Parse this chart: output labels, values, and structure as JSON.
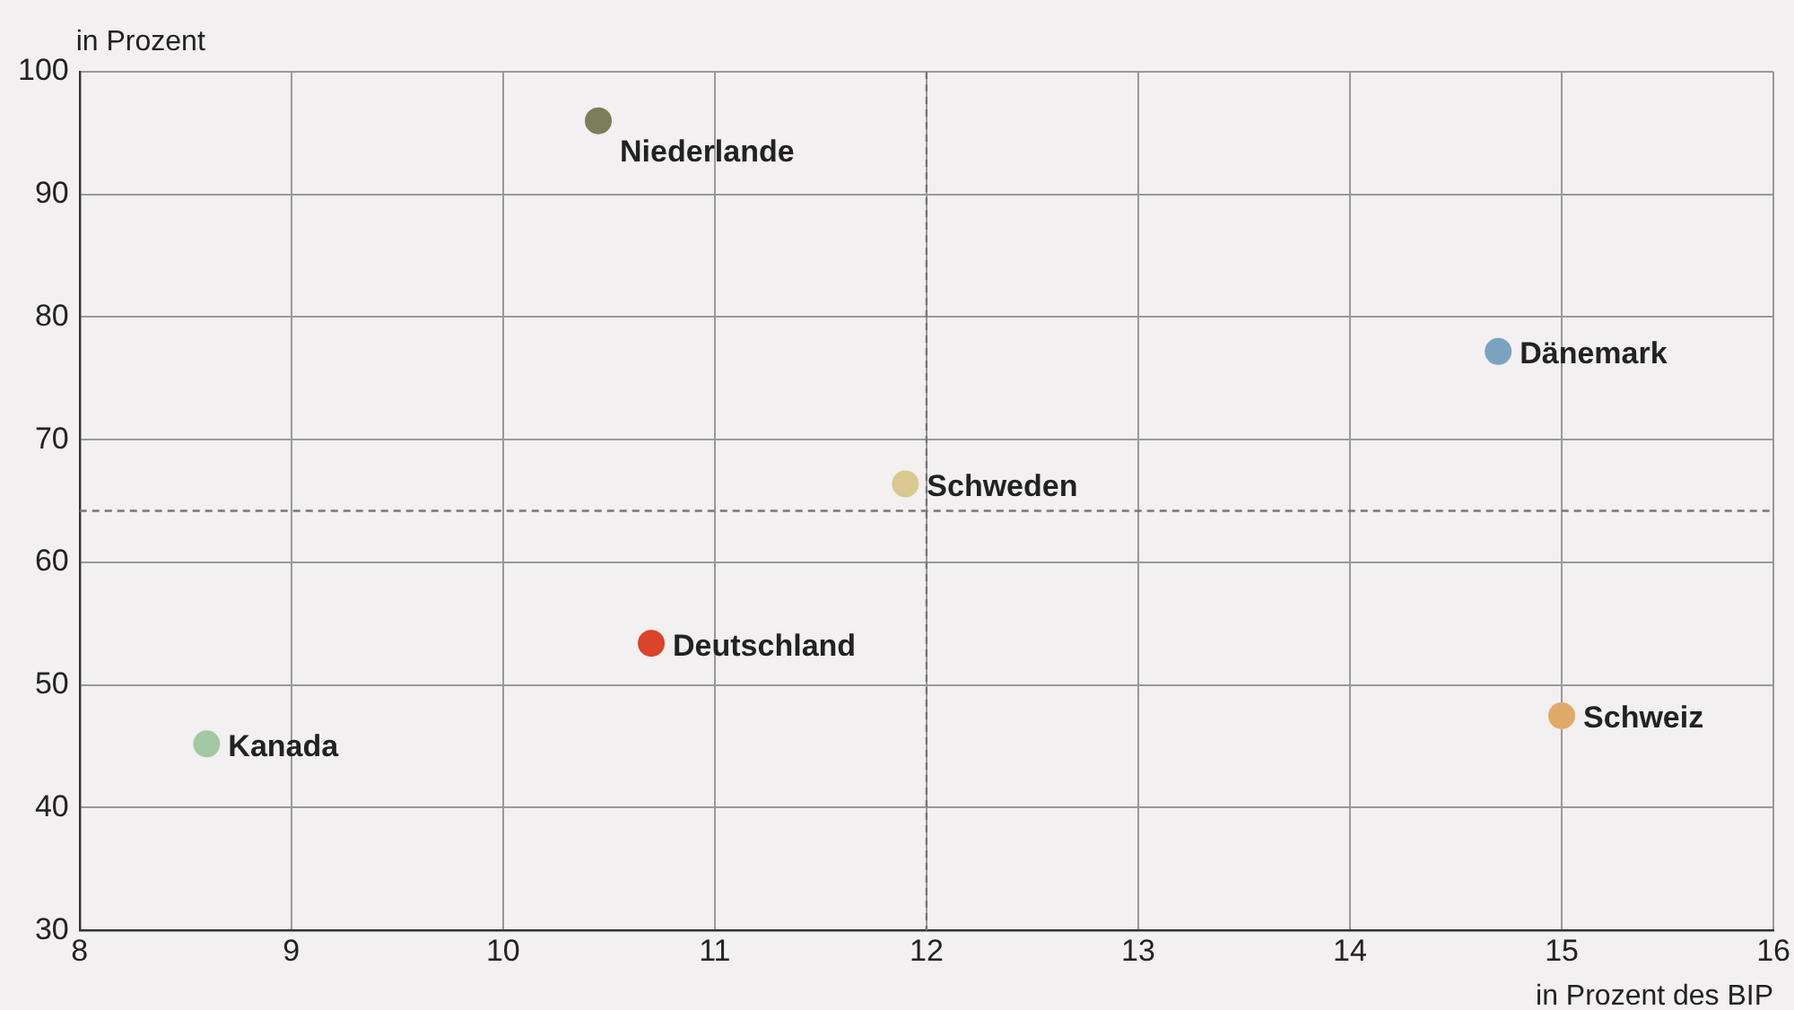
{
  "chart_data": {
    "type": "scatter",
    "xlabel": "in Prozent des BIP",
    "ylabel": "in Prozent",
    "xlim": [
      8,
      16
    ],
    "xticks": [
      8,
      9,
      10,
      11,
      12,
      13,
      14,
      15,
      16
    ],
    "ylim": [
      30,
      100
    ],
    "yticks": [
      30,
      40,
      50,
      60,
      70,
      80,
      90,
      100
    ],
    "grid": true,
    "legend": false,
    "marker": "circle",
    "series": [
      {
        "name": "Niederlande",
        "color": "#7a7f5a",
        "x": [
          10.45
        ],
        "values": [
          96
        ]
      },
      {
        "name": "Dänemark",
        "color": "#7ba3c0",
        "x": [
          14.7
        ],
        "values": [
          77.2
        ]
      },
      {
        "name": "Schweden",
        "color": "#d9c98f",
        "x": [
          11.9
        ],
        "values": [
          66.4
        ]
      },
      {
        "name": "Deutschland",
        "color": "#d9442a",
        "x": [
          10.7
        ],
        "values": [
          53.4
        ]
      },
      {
        "name": "Kanada",
        "color": "#a3c9a3",
        "x": [
          8.6
        ],
        "values": [
          45.2
        ]
      },
      {
        "name": "Schweiz",
        "color": "#e0aa6a",
        "x": [
          15
        ],
        "values": [
          47.5
        ]
      }
    ],
    "ref_lines": [
      {
        "axis": "x",
        "value": 12,
        "color": "#777777",
        "line_style": "dashed"
      },
      {
        "axis": "y",
        "value": 64.2,
        "color": "#777777",
        "line_style": "dashed"
      }
    ]
  }
}
